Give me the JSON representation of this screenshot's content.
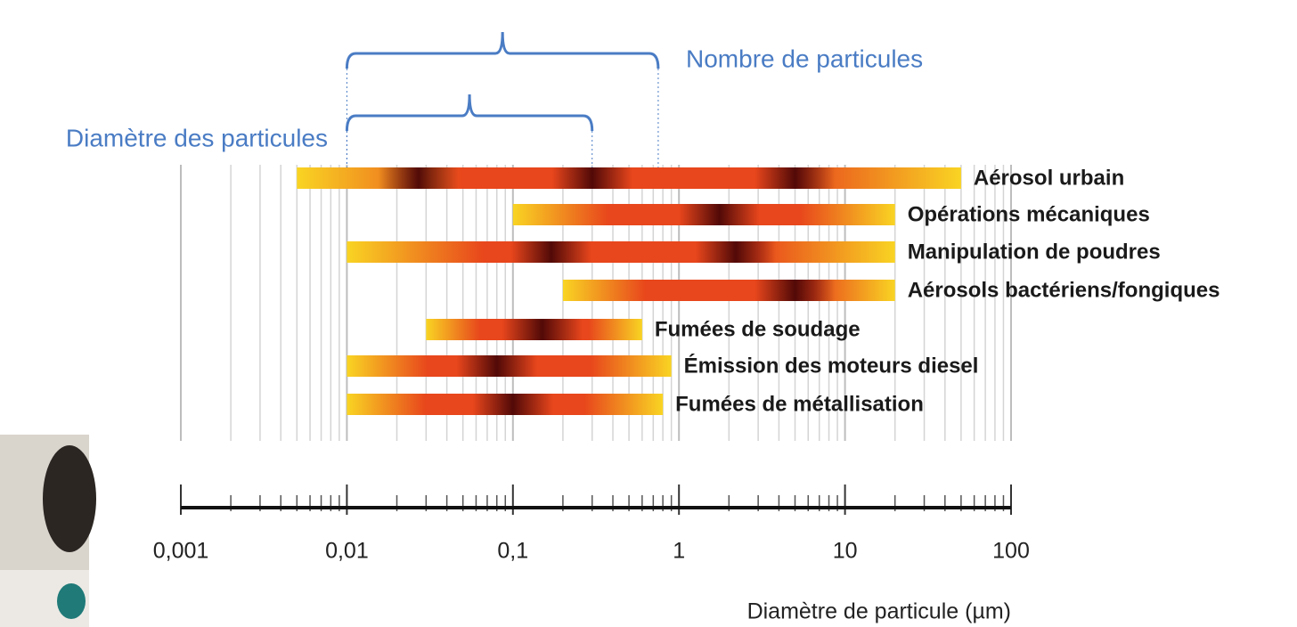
{
  "chart_data": {
    "type": "range_bar",
    "xlabel": "Diamètre de particule (µm)",
    "xscale": "log",
    "xlim": [
      0.001,
      100
    ],
    "xticks": [
      {
        "value": 0.001,
        "label": "0,001"
      },
      {
        "value": 0.01,
        "label": "0,01"
      },
      {
        "value": 0.1,
        "label": "0,1"
      },
      1,
      10,
      100
    ],
    "minor_xticks": [
      0.002,
      0.003,
      0.004,
      0.005,
      0.006,
      0.007,
      0.008,
      0.009,
      0.02,
      0.03,
      0.04,
      0.05,
      0.06,
      0.07,
      0.08,
      0.09,
      0.2,
      0.3,
      0.4,
      0.5,
      0.6,
      0.7,
      0.8,
      0.9,
      2,
      3,
      4,
      5,
      6,
      7,
      8,
      9,
      20,
      30,
      40,
      50,
      60,
      70,
      80,
      90
    ],
    "grid": true,
    "categories": [
      "Aérosol urbain",
      "Opérations mécaniques",
      "Manipulation de poudres",
      "Aérosols bactériens/fongiques",
      "Fumées de soudage",
      "Émission des moteurs diesel",
      "Fumées de métallisation"
    ],
    "starts": [
      0.005,
      0.1,
      0.01,
      0.2,
      0.03,
      0.01,
      0.01
    ],
    "ends": [
      50,
      20,
      20,
      20,
      0.6,
      0.9,
      0.8
    ],
    "peaks": [
      [
        0.027,
        0.3,
        5
      ],
      [
        1.75
      ],
      [
        0.17,
        2.2
      ],
      [
        5
      ],
      [
        0.15
      ],
      [
        0.08
      ],
      [
        0.1
      ]
    ],
    "color_low": "#f9d423",
    "color_high": "#e8461c",
    "peak_color": "#4a0606",
    "annotation_color": "#4a7cc4",
    "annotations": [
      {
        "text": "Nombre de particules",
        "from": 0.01,
        "to": 0.75
      },
      {
        "text": "Diamètre des particules",
        "from": 0.01,
        "to": 0.3
      }
    ]
  }
}
